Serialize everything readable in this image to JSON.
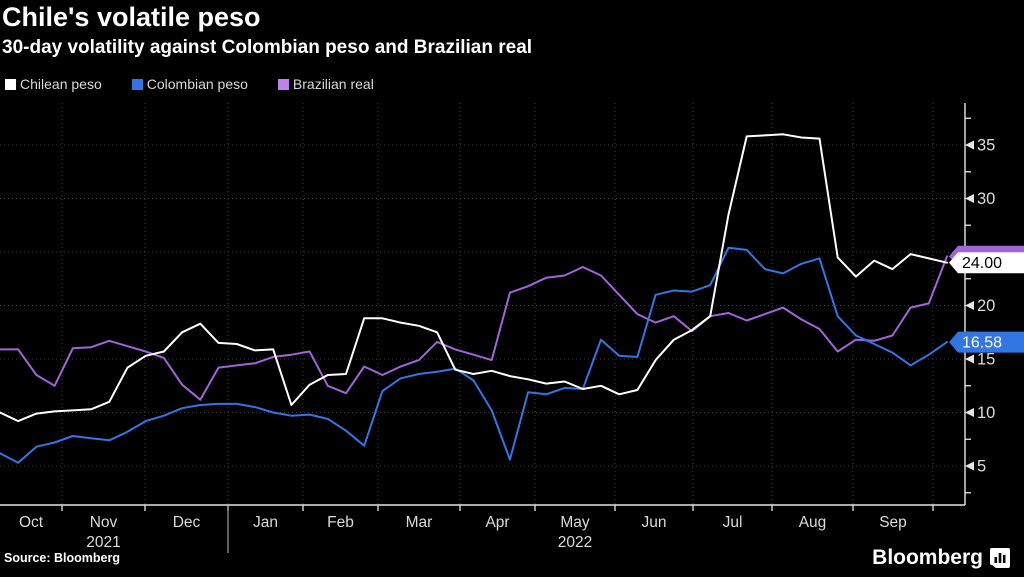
{
  "title": "Chile's volatile peso",
  "subtitle": "30-day volatility against Colombian peso and Brazilian real",
  "source": "Source: Bloomberg",
  "brand": "Bloomberg",
  "colors": {
    "background": "#000000",
    "grid": "#3d3d3d",
    "axis": "#e6e6e6",
    "tick_label": "#dadada",
    "chilean": "#ffffff",
    "colombian": "#3276e4",
    "brazilian": "#a263dc",
    "brazilian_swatch": "#bd80ec"
  },
  "legend": [
    {
      "label": "Chilean peso",
      "color": "#ffffff"
    },
    {
      "label": "Colombian peso",
      "color": "#3276e4"
    },
    {
      "label": "Brazilian real",
      "color": "#bd80ec"
    }
  ],
  "chart_data": {
    "type": "line",
    "title": "Chile's volatile peso",
    "subtitle": "30-day volatility against Colombian peso and Brazilian real",
    "ylabel": "30-day volatility",
    "ylim": [
      2.5,
      37.5
    ],
    "y_ticks": [
      5,
      10,
      15,
      20,
      25,
      30,
      35
    ],
    "y_minor_ticks": [
      2.5,
      7.5,
      12.5,
      17.5,
      22.5,
      27.5,
      32.5,
      37.5
    ],
    "grid": "dotted",
    "legend_position": "top-left",
    "x_month_labels": [
      "Oct",
      "Nov",
      "Dec",
      "Jan",
      "Feb",
      "Mar",
      "Apr",
      "May",
      "Jun",
      "Jul",
      "Aug",
      "Sep"
    ],
    "year_labels": [
      {
        "text": "2021",
        "month_index": 1
      },
      {
        "text": "2022",
        "month_index": 7
      }
    ],
    "x": [
      "2021-10-08",
      "2021-10-15",
      "2021-10-22",
      "2021-10-29",
      "2021-11-05",
      "2021-11-12",
      "2021-11-19",
      "2021-11-26",
      "2021-12-03",
      "2021-12-10",
      "2021-12-17",
      "2021-12-24",
      "2021-12-31",
      "2022-01-07",
      "2022-01-14",
      "2022-01-21",
      "2022-01-28",
      "2022-02-04",
      "2022-02-11",
      "2022-02-18",
      "2022-02-25",
      "2022-03-04",
      "2022-03-11",
      "2022-03-18",
      "2022-03-25",
      "2022-04-01",
      "2022-04-08",
      "2022-04-15",
      "2022-04-22",
      "2022-04-29",
      "2022-05-06",
      "2022-05-13",
      "2022-05-20",
      "2022-05-27",
      "2022-06-03",
      "2022-06-10",
      "2022-06-17",
      "2022-06-24",
      "2022-07-01",
      "2022-07-08",
      "2022-07-15",
      "2022-07-22",
      "2022-07-29",
      "2022-08-05",
      "2022-08-12",
      "2022-08-19",
      "2022-08-26",
      "2022-09-02",
      "2022-09-09",
      "2022-09-16",
      "2022-09-23",
      "2022-09-30",
      "2022-10-05"
    ],
    "series": [
      {
        "name": "Brazilian real",
        "color": "#a263dc",
        "values": [
          15.9,
          15.9,
          13.5,
          12.5,
          16.0,
          16.1,
          16.7,
          16.2,
          15.7,
          15.1,
          12.6,
          11.2,
          14.2,
          14.4,
          14.6,
          15.2,
          15.4,
          15.7,
          12.5,
          11.8,
          14.3,
          13.5,
          14.3,
          14.9,
          16.6,
          15.9,
          15.4,
          14.9,
          21.2,
          21.8,
          22.6,
          22.8,
          23.6,
          22.8,
          21.0,
          19.2,
          18.4,
          19.0,
          17.6,
          19.0,
          19.3,
          18.6,
          19.2,
          19.8,
          18.7,
          17.8,
          15.7,
          16.8,
          16.7,
          17.2,
          19.8,
          20.2,
          24.6
        ]
      },
      {
        "name": "Colombian peso",
        "color": "#3276e4",
        "values": [
          6.2,
          5.3,
          6.8,
          7.2,
          7.8,
          7.6,
          7.4,
          8.2,
          9.2,
          9.7,
          10.4,
          10.7,
          10.8,
          10.8,
          10.5,
          10.0,
          9.7,
          9.8,
          9.4,
          8.3,
          6.9,
          12.0,
          13.2,
          13.6,
          13.8,
          14.1,
          13.0,
          10.2,
          5.6,
          11.9,
          11.7,
          12.3,
          12.2,
          16.8,
          15.3,
          15.2,
          21.0,
          21.4,
          21.3,
          21.9,
          25.4,
          25.2,
          23.4,
          23.0,
          23.9,
          24.4,
          19.0,
          17.2,
          16.4,
          15.6,
          14.4,
          15.4,
          16.58
        ]
      },
      {
        "name": "Chilean peso",
        "color": "#ffffff",
        "values": [
          10.0,
          9.2,
          9.9,
          10.1,
          10.2,
          10.3,
          11.0,
          14.2,
          15.3,
          15.7,
          17.5,
          18.3,
          16.5,
          16.4,
          15.8,
          15.9,
          10.7,
          12.6,
          13.5,
          13.6,
          18.8,
          18.8,
          18.4,
          18.1,
          17.5,
          14.0,
          13.6,
          13.9,
          13.4,
          13.1,
          12.7,
          12.9,
          12.2,
          12.5,
          11.7,
          12.1,
          14.9,
          16.8,
          17.7,
          19.0,
          28.5,
          35.8,
          35.9,
          36.0,
          35.7,
          35.6,
          24.5,
          22.7,
          24.2,
          23.4,
          24.8,
          24.4,
          24.0
        ]
      }
    ],
    "callouts": [
      {
        "series": "Brazilian real",
        "text": "",
        "bg": "#a263dc",
        "fg": "#ffffff",
        "note": "tag mostly hidden behind Chilean peso tag",
        "value": 24.6
      },
      {
        "series": "Chilean peso",
        "text": "24.00",
        "bg": "#ffffff",
        "fg": "#000000",
        "value": 24.0
      },
      {
        "series": "Colombian peso",
        "text": "16.58",
        "bg": "#3276e4",
        "fg": "#ffffff",
        "value": 16.58
      }
    ]
  }
}
